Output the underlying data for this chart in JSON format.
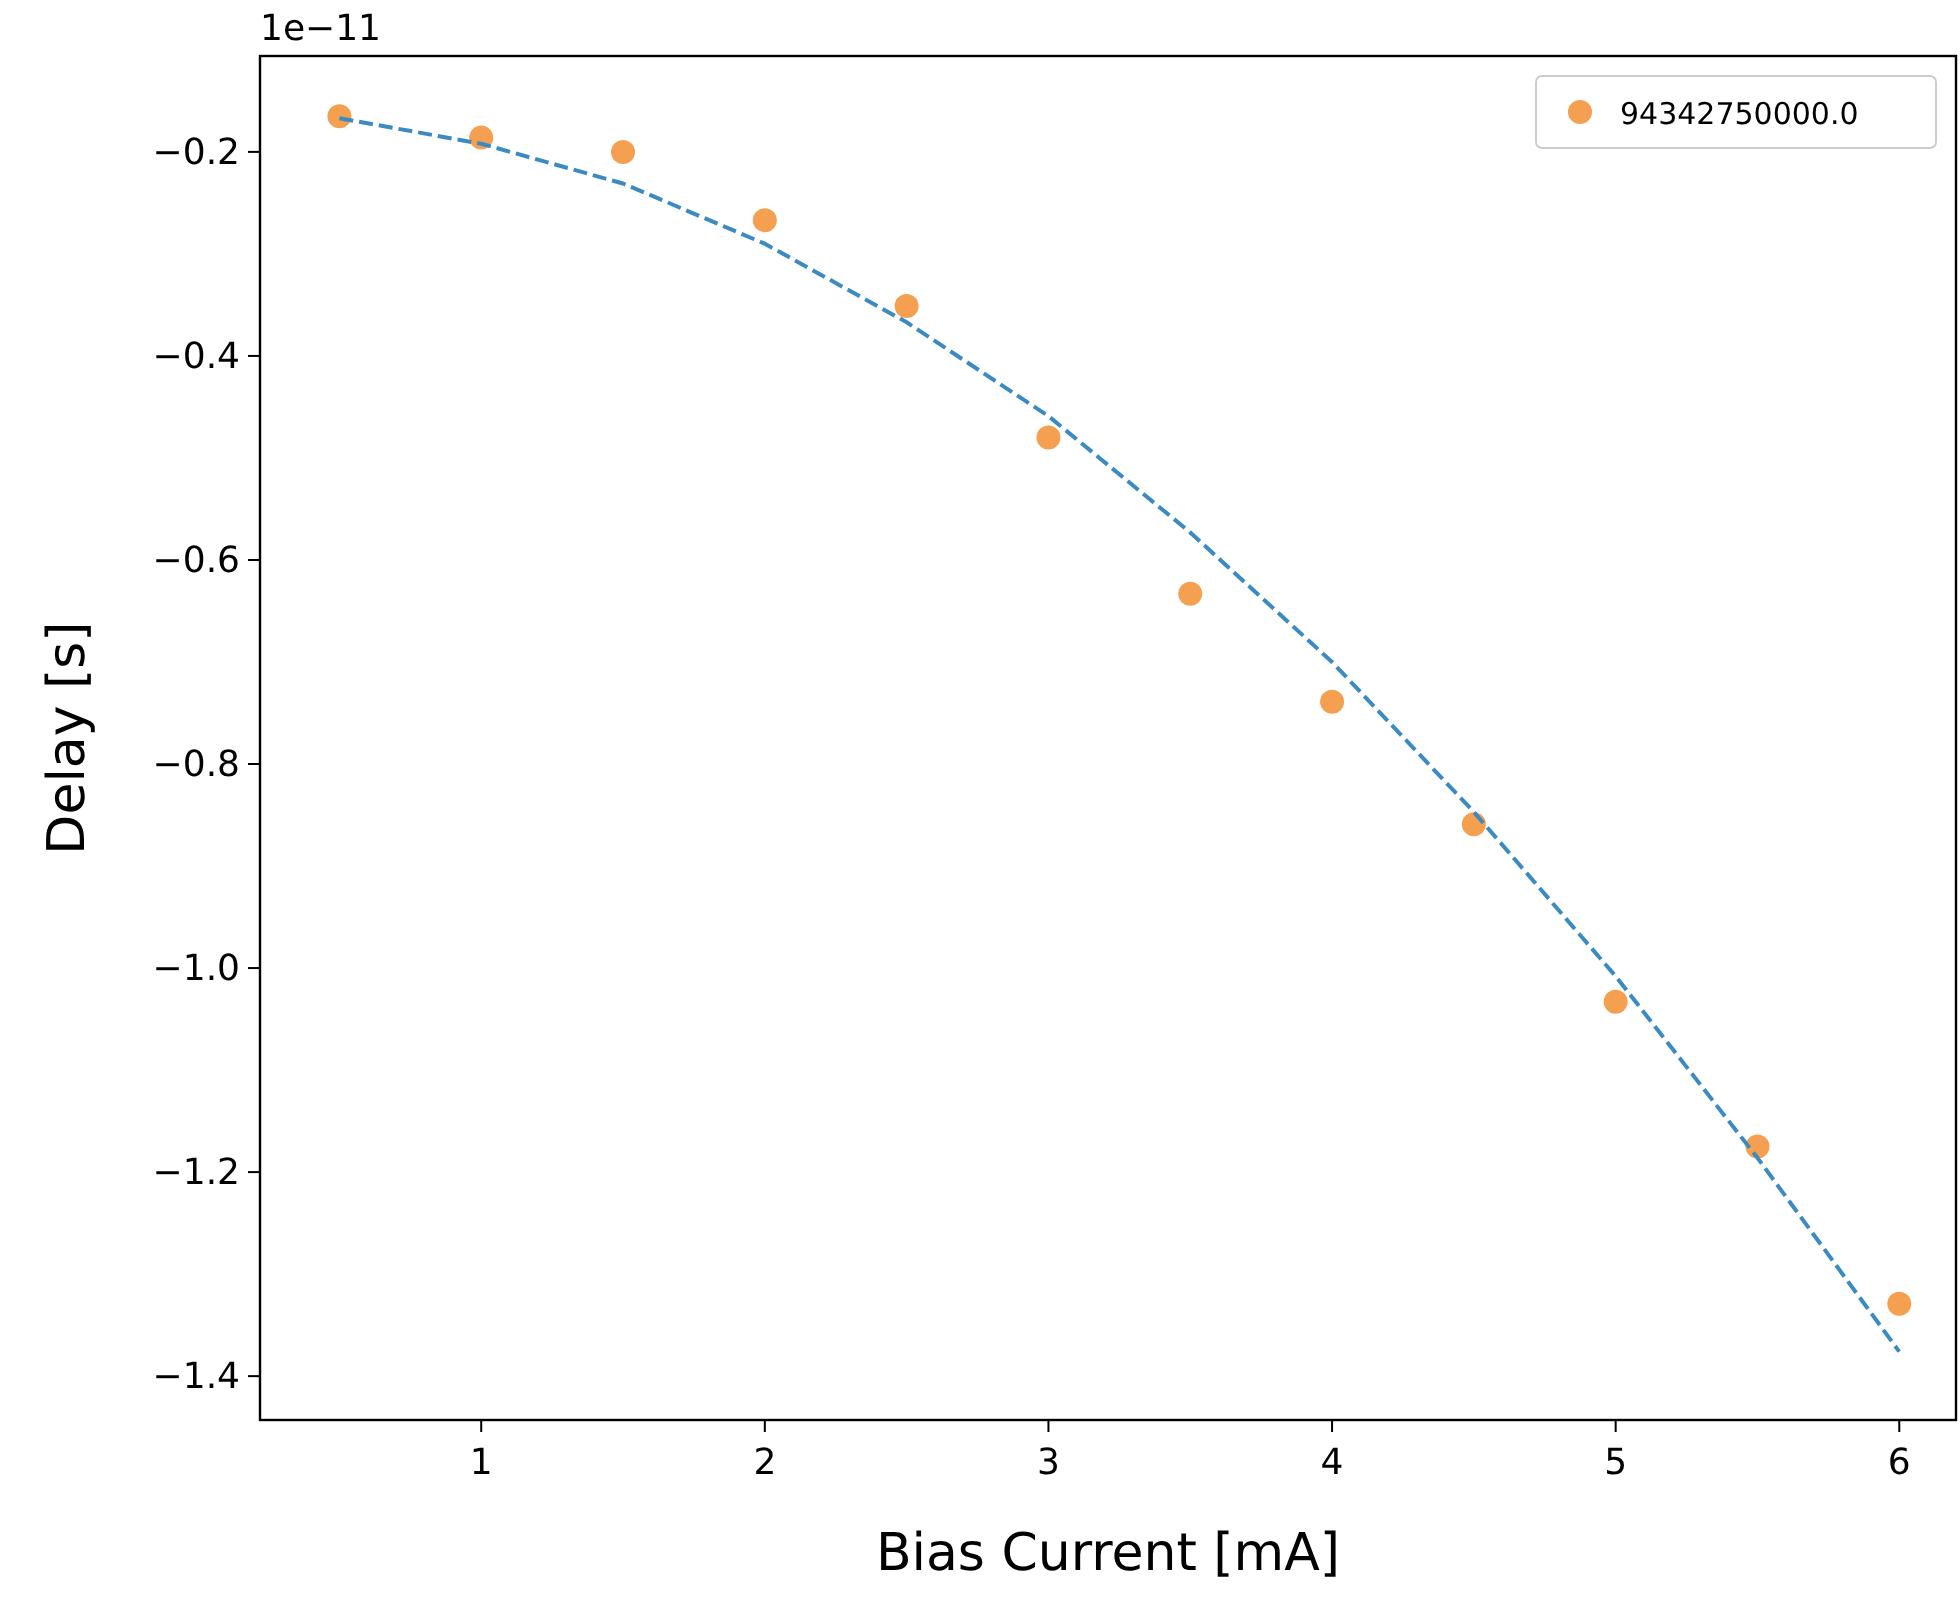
{
  "chart_data": {
    "type": "scatter",
    "xlabel": "Bias Current [mA]",
    "ylabel": "Delay [s]",
    "annotations": [
      "1e−11"
    ],
    "xlim": [
      0.22,
      6.2
    ],
    "xticks": [
      1,
      2,
      3,
      4,
      5,
      6
    ],
    "ylim": [
      -1.443,
      -0.106
    ],
    "yticks": [
      {
        "value": -0.2,
        "label": "−0.2"
      },
      {
        "value": -0.4,
        "label": "−0.4"
      },
      {
        "value": -0.6,
        "label": "−0.6"
      },
      {
        "value": -0.8,
        "label": "−0.8"
      },
      {
        "value": -1.0,
        "label": "−1.0"
      },
      {
        "value": -1.2,
        "label": "−1.2"
      },
      {
        "value": -1.4,
        "label": "−1.4"
      }
    ],
    "grid": false,
    "legend": "top right",
    "series": [
      {
        "name": "94342750000.0",
        "color": "#f5a050",
        "marker": "circle",
        "x": [
          0.5,
          1,
          1.5,
          2,
          2.5,
          3,
          3.5,
          4,
          4.5,
          5,
          5.5,
          6
        ],
        "values": [
          -0.165,
          -0.186,
          -0.2,
          -0.267,
          -0.351,
          -0.48,
          -0.633,
          -0.739,
          -0.859,
          -1.033,
          -1.175,
          -1.329
        ]
      },
      {
        "type": "line",
        "color": "#3b8bc2",
        "marker": "none",
        "line_style": "dashed",
        "x": [
          0.5,
          1,
          1.5,
          2,
          2.5,
          3,
          3.5,
          4,
          4.5,
          5,
          5.5,
          6
        ],
        "values": [
          -0.167,
          -0.192,
          -0.231,
          -0.29,
          -0.367,
          -0.459,
          -0.573,
          -0.7,
          -0.847,
          -1.008,
          -1.186,
          -1.376
        ]
      }
    ]
  }
}
